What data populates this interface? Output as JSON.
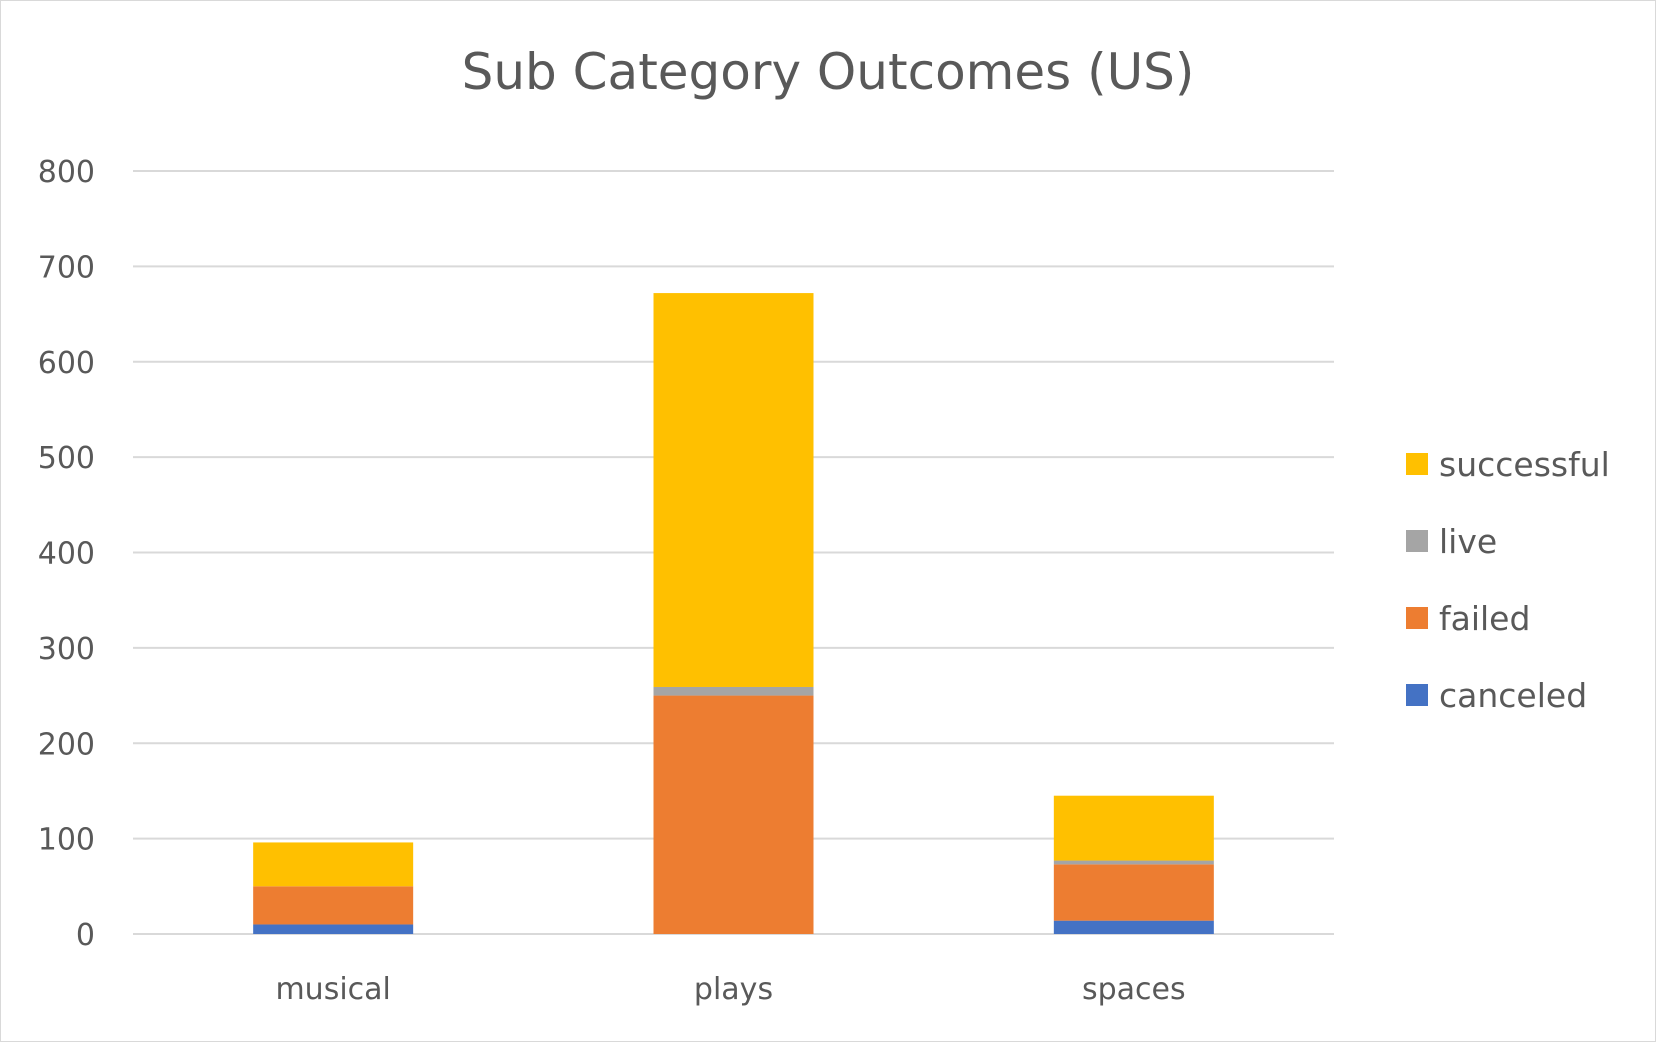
{
  "chart_data": {
    "type": "bar",
    "stacked": true,
    "title": "Sub Category Outcomes (US)",
    "xlabel": "",
    "ylabel": "",
    "ylim": [
      0,
      800
    ],
    "yticks": [
      0,
      100,
      200,
      300,
      400,
      500,
      600,
      700,
      800
    ],
    "grid": true,
    "legend_position": "right",
    "categories": [
      "musical",
      "plays",
      "spaces"
    ],
    "series": [
      {
        "name": "canceled",
        "color": "#4472C4",
        "values": [
          10,
          0,
          14
        ]
      },
      {
        "name": "failed",
        "color": "#ED7D31",
        "values": [
          40,
          250,
          59
        ]
      },
      {
        "name": "live",
        "color": "#A5A5A5",
        "values": [
          0,
          9,
          4
        ]
      },
      {
        "name": "successful",
        "color": "#FFC000",
        "values": [
          46,
          413,
          68
        ]
      }
    ]
  }
}
